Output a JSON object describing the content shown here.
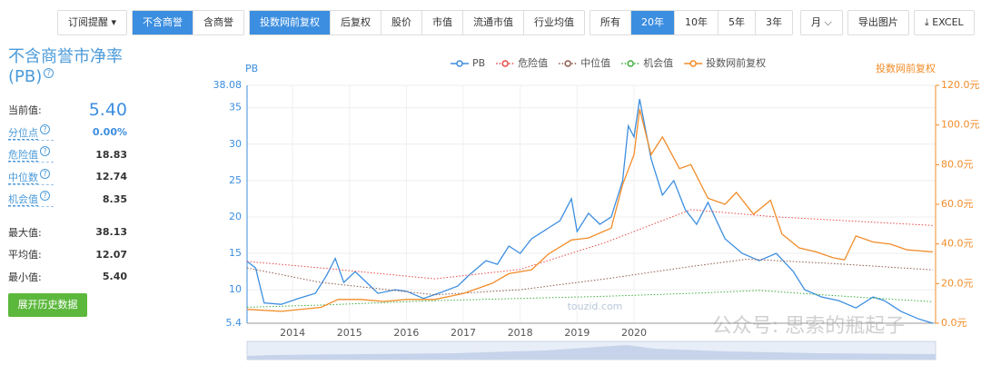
{
  "toolbar": {
    "groups": [
      [
        {
          "label": "订阅提醒 ▾",
          "active": false
        }
      ],
      [
        {
          "label": "不含商誉",
          "active": true
        },
        {
          "label": "含商誉",
          "active": false
        }
      ],
      [
        {
          "label": "投数网前复权",
          "active": true
        },
        {
          "label": "后复权",
          "active": false
        },
        {
          "label": "股价",
          "active": false
        },
        {
          "label": "市值",
          "active": false
        },
        {
          "label": "流通市值",
          "active": false
        },
        {
          "label": "行业均值",
          "active": false
        }
      ],
      [
        {
          "label": "所有",
          "active": false
        },
        {
          "label": "20年",
          "active": true
        },
        {
          "label": "10年",
          "active": false
        },
        {
          "label": "5年",
          "active": false
        },
        {
          "label": "3年",
          "active": false
        }
      ],
      [
        {
          "label": "月 ⌵",
          "active": false
        }
      ],
      [
        {
          "label": "导出图片",
          "active": false
        }
      ],
      [
        {
          "label": "⤓ EXCEL",
          "active": false
        }
      ]
    ]
  },
  "panel": {
    "title": "不含商誉市净率(PB)",
    "current": {
      "label": "当前值:",
      "value": "5.40"
    },
    "stats": [
      {
        "label": "分位点",
        "value": "0.00%",
        "hint": true
      },
      {
        "label": "危险值",
        "value": "18.83",
        "hint": true
      },
      {
        "label": "中位数",
        "value": "12.74",
        "hint": true
      },
      {
        "label": "机会值",
        "value": "8.35",
        "hint": true
      }
    ],
    "extremes": [
      {
        "label": "最大值:",
        "value": "38.13"
      },
      {
        "label": "平均值:",
        "value": "12.07"
      },
      {
        "label": "最小值:",
        "value": "5.40"
      }
    ],
    "button": "展开历史数据"
  },
  "chart_data": {
    "type": "line",
    "y_label": "PB",
    "y2_label": "投数网前复权",
    "watermarks": [
      "touzid.com",
      "公众号: 思索的瓶起子"
    ],
    "xlim": [
      2013.2,
      2025.3
    ],
    "xticks": [
      2014,
      2015,
      2016,
      2017,
      2018,
      2019,
      2020
    ],
    "ylim": [
      5.4,
      38.08
    ],
    "yticks": [
      5.4,
      10,
      15,
      20,
      25,
      30,
      35,
      38.08
    ],
    "y2lim": [
      0,
      120
    ],
    "y2ticks": [
      {
        "value": 0,
        "label": "0.0元"
      },
      {
        "value": 20,
        "label": "20.0元"
      },
      {
        "value": 40,
        "label": "40.0元"
      },
      {
        "value": 60,
        "label": "60.0元"
      },
      {
        "value": 80,
        "label": "80.0元"
      },
      {
        "value": 100,
        "label": "100.0元"
      },
      {
        "value": 120,
        "label": "120.0元"
      }
    ],
    "grid": true,
    "series": [
      {
        "name": "PB",
        "color": "#3c8ee0",
        "dotted": false,
        "x": [
          2013.2,
          2013.35,
          2013.5,
          2013.8,
          2014.1,
          2014.4,
          2014.6,
          2014.75,
          2014.9,
          2015.1,
          2015.3,
          2015.5,
          2015.8,
          2016.0,
          2016.3,
          2016.6,
          2016.9,
          2017.1,
          2017.4,
          2017.6,
          2017.8,
          2018.0,
          2018.2,
          2018.5,
          2018.7,
          2018.9,
          2019.0,
          2019.2,
          2019.4,
          2019.6,
          2019.8,
          2019.9,
          2020.0,
          2020.1,
          2020.3,
          2020.5,
          2020.7,
          2020.9,
          2021.1,
          2021.3,
          2021.6,
          2021.9,
          2022.2,
          2022.5,
          2022.8,
          2023.0,
          2023.3,
          2023.6,
          2023.9,
          2024.2,
          2024.4,
          2024.7,
          2025.0,
          2025.25
        ],
        "values": [
          13.9,
          13,
          8.2,
          8.0,
          8.8,
          9.5,
          12,
          14.3,
          11,
          12.5,
          11,
          9.5,
          10,
          9.8,
          8.8,
          9.6,
          10.5,
          12,
          14,
          13.5,
          16,
          15,
          17,
          18.5,
          19.5,
          22.5,
          18,
          20.5,
          19,
          20,
          25,
          32.5,
          31,
          36.2,
          28,
          23,
          25,
          21,
          19,
          22,
          17,
          15,
          14,
          15,
          12.5,
          10,
          9,
          8.5,
          7.5,
          9,
          8.5,
          7,
          6,
          5.4
        ]
      },
      {
        "name": "危险值",
        "color": "#e84a4a",
        "dotted": true,
        "x": [
          2013.2,
          2014.5,
          2016.5,
          2018.0,
          2019.5,
          2021.0,
          2022.5,
          2025.25
        ],
        "values": [
          13.9,
          13,
          11.5,
          12.8,
          16.5,
          21,
          20,
          18.83
        ]
      },
      {
        "name": "中位值",
        "color": "#8b5a4a",
        "dotted": true,
        "x": [
          2013.2,
          2014.5,
          2016.5,
          2018.0,
          2019.5,
          2021.0,
          2022.0,
          2023.5,
          2025.25
        ],
        "values": [
          13,
          11,
          9.3,
          10,
          11.5,
          13.2,
          14.2,
          13.6,
          12.74
        ]
      },
      {
        "name": "机会值",
        "color": "#3fae3f",
        "dotted": true,
        "x": [
          2013.2,
          2014.5,
          2016.5,
          2018.0,
          2019.5,
          2021.0,
          2022.2,
          2023.5,
          2025.25
        ],
        "values": [
          7.6,
          7.9,
          8.5,
          8.8,
          9.1,
          9.5,
          9.9,
          9.2,
          8.35
        ]
      },
      {
        "name": "投数网前复权",
        "color": "#f28c28",
        "dotted": false,
        "axis": "y2",
        "x": [
          2013.2,
          2013.8,
          2014.5,
          2014.8,
          2015.2,
          2015.6,
          2016.0,
          2016.5,
          2017.0,
          2017.5,
          2017.8,
          2018.2,
          2018.5,
          2018.9,
          2019.2,
          2019.6,
          2019.8,
          2020.0,
          2020.1,
          2020.3,
          2020.5,
          2020.8,
          2021.0,
          2021.3,
          2021.6,
          2021.8,
          2022.1,
          2022.4,
          2022.6,
          2022.9,
          2023.2,
          2023.5,
          2023.7,
          2023.9,
          2024.2,
          2024.5,
          2024.8,
          2025.25
        ],
        "values": [
          7,
          6,
          8,
          12,
          12,
          11,
          12,
          12,
          15,
          20,
          25,
          27,
          35,
          42,
          43,
          48,
          70,
          85,
          108,
          85,
          94,
          78,
          80,
          63,
          60,
          66,
          55,
          62,
          45,
          38,
          36,
          33,
          32,
          44,
          41,
          40,
          37,
          36
        ]
      }
    ]
  }
}
